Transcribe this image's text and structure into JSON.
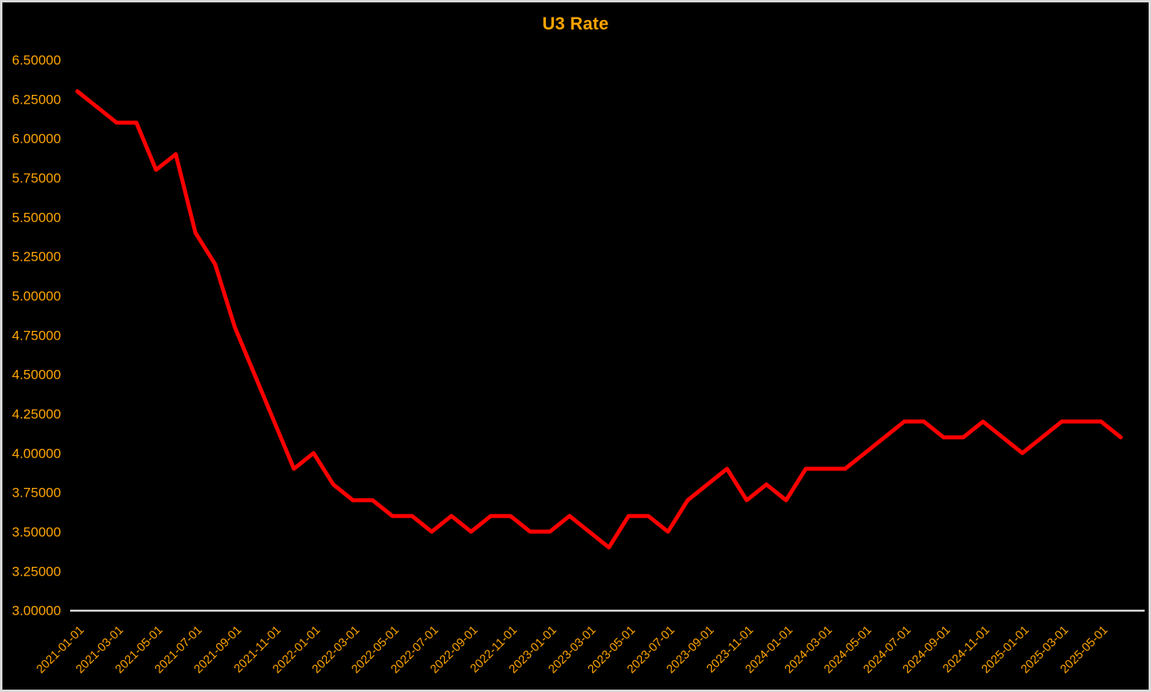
{
  "chart_data": {
    "type": "line",
    "title": "U3 Rate",
    "series": [
      {
        "name": "U3 Rate",
        "x": [
          "2021-01-01",
          "2021-02-01",
          "2021-03-01",
          "2021-04-01",
          "2021-05-01",
          "2021-06-01",
          "2021-07-01",
          "2021-08-01",
          "2021-09-01",
          "2021-10-01",
          "2021-11-01",
          "2021-12-01",
          "2022-01-01",
          "2022-02-01",
          "2022-03-01",
          "2022-04-01",
          "2022-05-01",
          "2022-06-01",
          "2022-07-01",
          "2022-08-01",
          "2022-09-01",
          "2022-10-01",
          "2022-11-01",
          "2022-12-01",
          "2023-01-01",
          "2023-02-01",
          "2023-03-01",
          "2023-04-01",
          "2023-05-01",
          "2023-06-01",
          "2023-07-01",
          "2023-08-01",
          "2023-09-01",
          "2023-10-01",
          "2023-11-01",
          "2023-12-01",
          "2024-01-01",
          "2024-02-01",
          "2024-03-01",
          "2024-04-01",
          "2024-05-01",
          "2024-06-01",
          "2024-07-01",
          "2024-08-01",
          "2024-09-01",
          "2024-10-01",
          "2024-11-01",
          "2024-12-01",
          "2025-01-01",
          "2025-02-01",
          "2025-03-01",
          "2025-04-01",
          "2025-05-01",
          "2025-06-01"
        ],
        "values": [
          6.3,
          6.2,
          6.1,
          6.1,
          5.8,
          5.9,
          5.4,
          5.2,
          4.8,
          4.5,
          4.2,
          3.9,
          4.0,
          3.8,
          3.7,
          3.7,
          3.6,
          3.6,
          3.5,
          3.6,
          3.5,
          3.6,
          3.6,
          3.5,
          3.5,
          3.6,
          3.5,
          3.4,
          3.6,
          3.6,
          3.5,
          3.7,
          3.8,
          3.9,
          3.7,
          3.8,
          3.7,
          3.9,
          3.9,
          3.9,
          4.0,
          4.1,
          4.2,
          4.2,
          4.1,
          4.1,
          4.2,
          4.1,
          4.0,
          4.1,
          4.2,
          4.2,
          4.2,
          4.1
        ]
      }
    ],
    "xlabel": "",
    "ylabel": "",
    "ylim": [
      3.0,
      6.5
    ],
    "ytick_step": 0.25,
    "ytick_labels": [
      "6.50000",
      "6.25000",
      "6.00000",
      "5.75000",
      "5.50000",
      "5.25000",
      "5.00000",
      "4.75000",
      "4.50000",
      "4.25000",
      "4.00000",
      "3.75000",
      "3.50000",
      "3.25000",
      "3.00000"
    ],
    "xtick_every_n_months": 2,
    "xtick_labels": [
      "2021-01-01",
      "2021-03-01",
      "2021-05-01",
      "2021-07-01",
      "2021-09-01",
      "2021-11-01",
      "2022-01-01",
      "2022-03-01",
      "2022-05-01",
      "2022-07-01",
      "2022-09-01",
      "2022-11-01",
      "2023-01-01",
      "2023-03-01",
      "2023-05-01",
      "2023-07-01",
      "2023-09-01",
      "2023-11-01",
      "2024-01-01",
      "2024-03-01",
      "2024-05-01",
      "2024-07-01",
      "2024-09-01",
      "2024-11-01",
      "2025-01-01",
      "2025-03-01",
      "2025-05-01"
    ],
    "xtick_rotation_deg": 45,
    "grid": false,
    "legend": "none",
    "colors": {
      "line": "#ff0000",
      "text": "#ffa500",
      "background": "#000000",
      "axis_line": "#d9d9d9",
      "figure_border": "#d9d9d9"
    }
  }
}
